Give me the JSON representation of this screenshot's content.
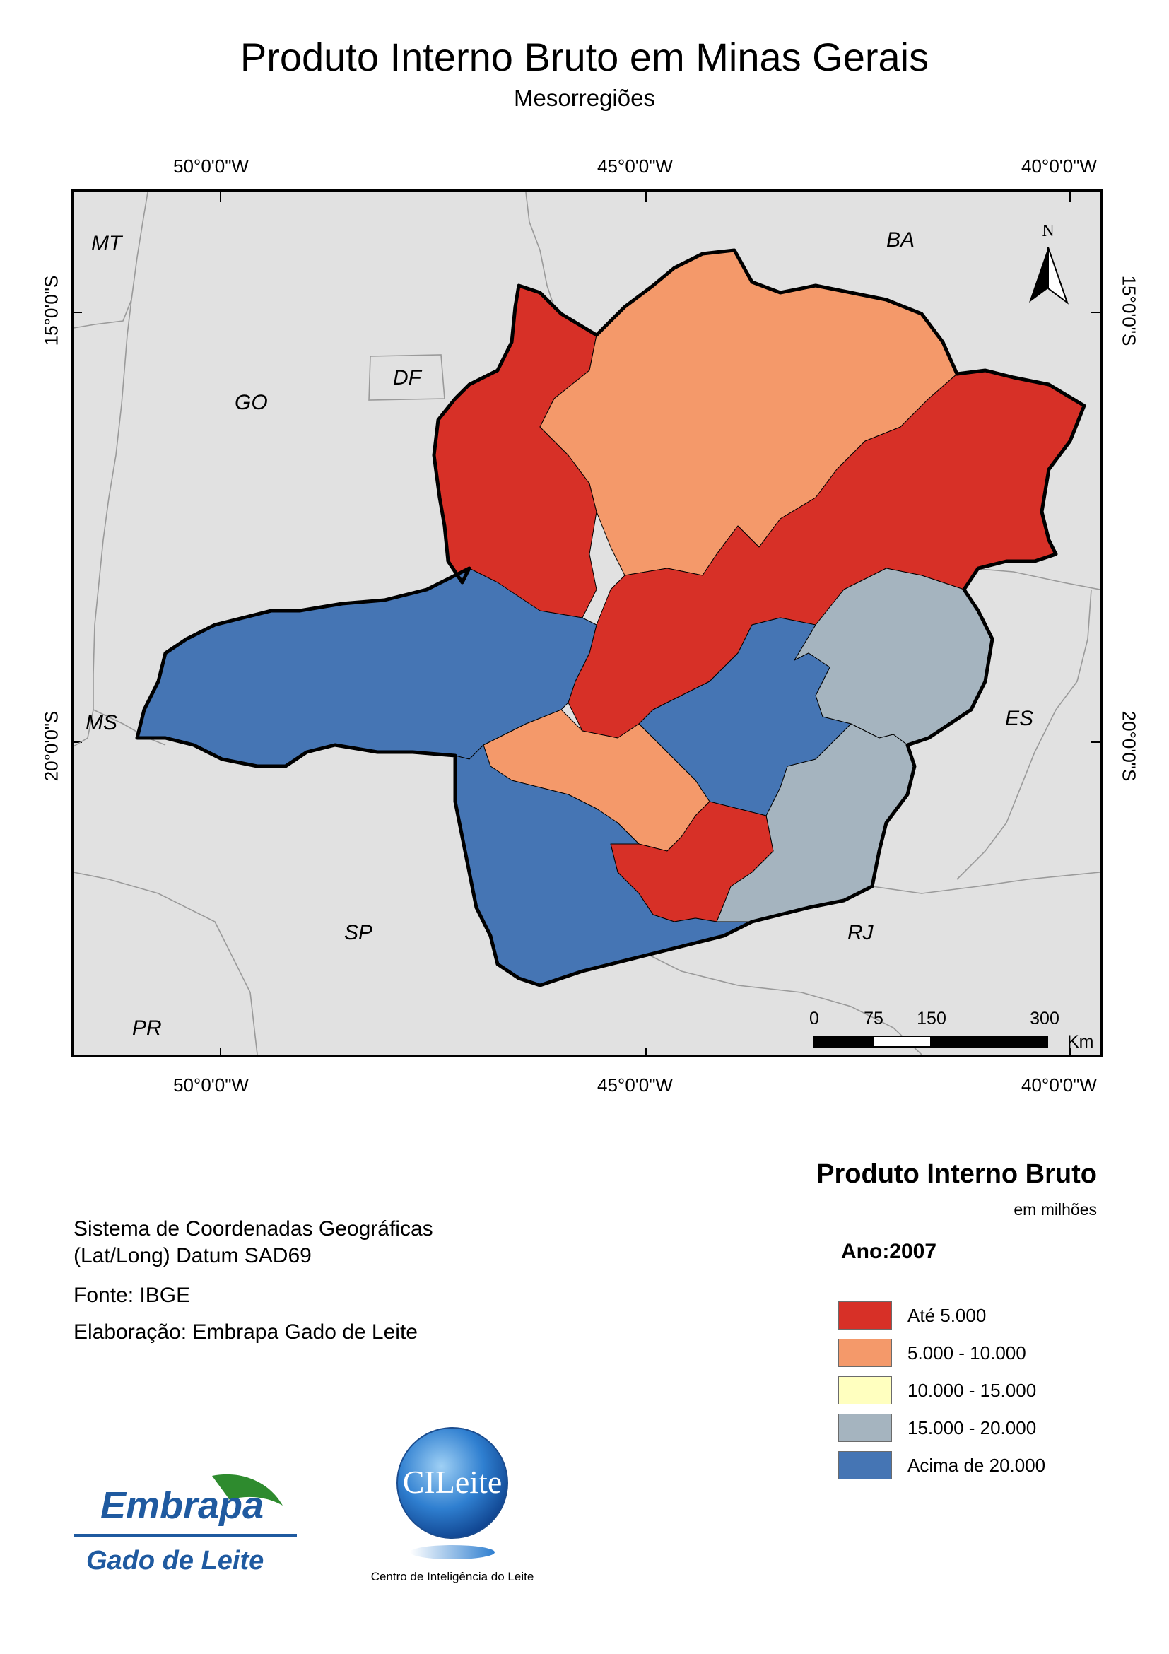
{
  "title": "Produto Interno Bruto em Minas Gerais",
  "subtitle": "Mesorregiões",
  "graticule": {
    "top": [
      "50°0'0\"W",
      "45°0'0\"W",
      "40°0'0\"W"
    ],
    "bottom": [
      "50°0'0\"W",
      "45°0'0\"W",
      "40°0'0\"W"
    ],
    "left": [
      "15°0'0\"S",
      "20°0'0\"S"
    ],
    "right": [
      "15°0'0\"S",
      "20°0'0\"S"
    ]
  },
  "states": [
    "MT",
    "BA",
    "GO",
    "DF",
    "MS",
    "ES",
    "SP",
    "RJ",
    "PR"
  ],
  "north_label": "N",
  "scale_bar": {
    "ticks": [
      "0",
      "75",
      "150",
      "300"
    ],
    "unit": "Km"
  },
  "legend": {
    "title": "Produto Interno Bruto",
    "unit": "em milhões",
    "year": "Ano:2007",
    "classes": [
      {
        "label": "Até 5.000",
        "color": "#d73027"
      },
      {
        "label": "5.000 - 10.000",
        "color": "#f4996a"
      },
      {
        "label": "10.000 - 15.000",
        "color": "#ffffbf"
      },
      {
        "label": "15.000 - 20.000",
        "color": "#a5b4bf"
      },
      {
        "label": "Acima de 20.000",
        "color": "#4575b4"
      }
    ]
  },
  "info": {
    "coord_system_1": "Sistema de Coordenadas Geográficas",
    "coord_system_2": "(Lat/Long) Datum SAD69",
    "source": "Fonte: IBGE",
    "authorship": "Elaboração: Embrapa Gado de Leite"
  },
  "logos": {
    "embrapa_top": "Embrapa",
    "embrapa_bottom": "Gado de Leite",
    "cileite_badge": "CILeite",
    "cileite_caption": "Centro de Inteligência do Leite"
  },
  "colors": {
    "background": "#e1e1e1",
    "border": "#000000"
  }
}
